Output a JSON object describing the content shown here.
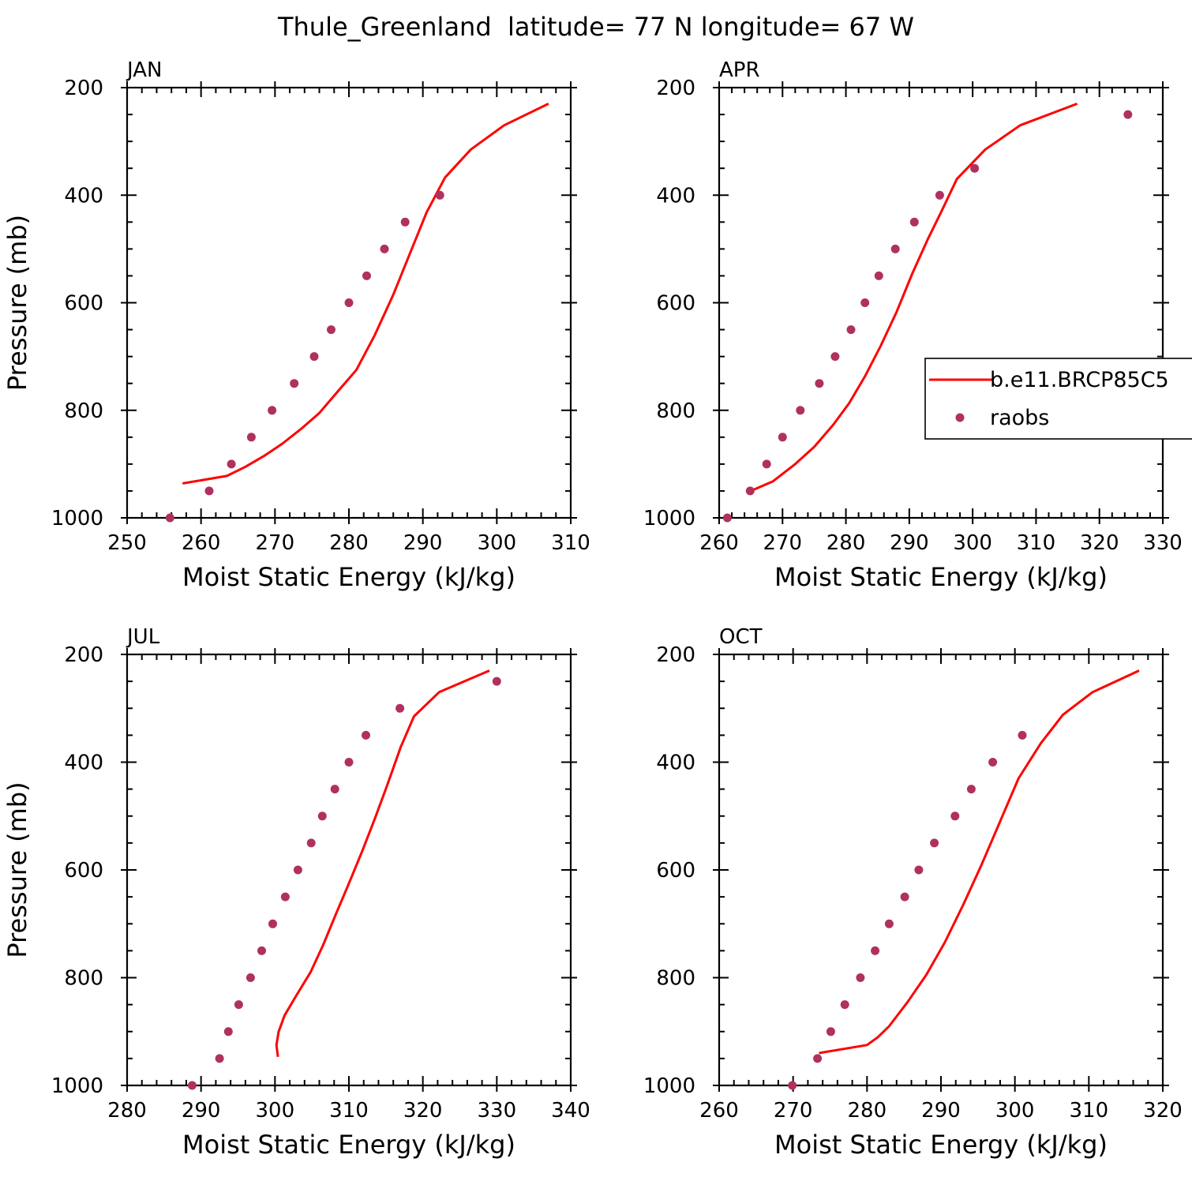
{
  "figure": {
    "title": "Thule_Greenland  latitude= 77 N longitude= 67 W"
  },
  "legend": {
    "model_label": "b.e11.BRCP85C5",
    "obs_label": "raobs"
  },
  "colors": {
    "model": "#ff0000",
    "obs": "#b03060",
    "axes": "#000000"
  },
  "chart_data": [
    {
      "type": "line",
      "title": "JAN",
      "xlabel": "Moist Static Energy (kJ/kg)",
      "ylabel": "Pressure (mb)",
      "xlim": [
        250,
        310
      ],
      "ylim": [
        1000,
        200
      ],
      "xticks": [
        250,
        260,
        270,
        280,
        290,
        300,
        310
      ],
      "yticks": [
        200,
        400,
        600,
        800,
        1000
      ],
      "grid": false,
      "series": [
        {
          "name": "b.e11.BRCP85C5",
          "style": "line",
          "points": [
            [
              257.5,
              936
            ],
            [
              263.5,
              922
            ],
            [
              266,
              905
            ],
            [
              268.5,
              885
            ],
            [
              271,
              862
            ],
            [
              273.5,
              835
            ],
            [
              276,
              805
            ],
            [
              278.5,
              765
            ],
            [
              281,
              725
            ],
            [
              283.5,
              660
            ],
            [
              286,
              585
            ],
            [
              288.5,
              500
            ],
            [
              290.5,
              432
            ],
            [
              293,
              367
            ],
            [
              296.5,
              315
            ],
            [
              301,
              270
            ],
            [
              307,
              230
            ]
          ]
        },
        {
          "name": "raobs",
          "style": "markers",
          "points": [
            [
              255.8,
              1000
            ],
            [
              261.1,
              950
            ],
            [
              264.1,
              900
            ],
            [
              266.8,
              850
            ],
            [
              269.6,
              800
            ],
            [
              272.6,
              750
            ],
            [
              275.3,
              700
            ],
            [
              277.6,
              650
            ],
            [
              280,
              600
            ],
            [
              282.4,
              550
            ],
            [
              284.8,
              500
            ],
            [
              287.6,
              450
            ],
            [
              292.3,
              400
            ]
          ]
        }
      ]
    },
    {
      "type": "line",
      "title": "APR",
      "xlabel": "Moist Static Energy (kJ/kg)",
      "ylabel": "",
      "xlim": [
        260,
        330
      ],
      "ylim": [
        1000,
        200
      ],
      "xticks": [
        260,
        270,
        280,
        290,
        300,
        310,
        320,
        330
      ],
      "yticks": [
        200,
        400,
        600,
        800,
        1000
      ],
      "grid": false,
      "legend_position": "right",
      "series": [
        {
          "name": "b.e11.BRCP85C5",
          "style": "line",
          "points": [
            [
              265,
              950
            ],
            [
              268.5,
              932
            ],
            [
              272,
              900
            ],
            [
              275,
              868
            ],
            [
              278,
              827
            ],
            [
              280.5,
              787
            ],
            [
              283,
              737
            ],
            [
              285.5,
              680
            ],
            [
              288,
              617
            ],
            [
              290.5,
              545
            ],
            [
              293,
              480
            ],
            [
              295,
              432
            ],
            [
              297.5,
              370
            ],
            [
              302,
              315
            ],
            [
              307.5,
              270
            ],
            [
              316.5,
              230
            ]
          ]
        },
        {
          "name": "raobs",
          "style": "markers",
          "points": [
            [
              261.3,
              1000
            ],
            [
              264.9,
              950
            ],
            [
              267.5,
              900
            ],
            [
              270,
              850
            ],
            [
              272.8,
              800
            ],
            [
              275.8,
              750
            ],
            [
              278.3,
              700
            ],
            [
              280.8,
              650
            ],
            [
              283,
              600
            ],
            [
              285.2,
              550
            ],
            [
              287.8,
              500
            ],
            [
              290.8,
              450
            ],
            [
              294.8,
              400
            ],
            [
              300.3,
              350
            ],
            [
              324.5,
              250
            ]
          ]
        }
      ]
    },
    {
      "type": "line",
      "title": "JUL",
      "xlabel": "Moist Static Energy (kJ/kg)",
      "ylabel": "Pressure (mb)",
      "xlim": [
        280,
        340
      ],
      "ylim": [
        1000,
        200
      ],
      "xticks": [
        280,
        290,
        300,
        310,
        320,
        330,
        340
      ],
      "yticks": [
        200,
        400,
        600,
        800,
        1000
      ],
      "grid": false,
      "series": [
        {
          "name": "b.e11.BRCP85C5",
          "style": "line",
          "points": [
            [
              300.4,
              947
            ],
            [
              300.2,
              925
            ],
            [
              300.5,
              900
            ],
            [
              301.3,
              870
            ],
            [
              302.8,
              835
            ],
            [
              304.8,
              790
            ],
            [
              306.5,
              740
            ],
            [
              308.3,
              680
            ],
            [
              310,
              625
            ],
            [
              311.8,
              565
            ],
            [
              313.5,
              505
            ],
            [
              315.2,
              442
            ],
            [
              317,
              372
            ],
            [
              318.8,
              315
            ],
            [
              322.2,
              270
            ],
            [
              329,
              230
            ]
          ]
        },
        {
          "name": "raobs",
          "style": "markers",
          "points": [
            [
              288.8,
              1000
            ],
            [
              292.5,
              950
            ],
            [
              293.7,
              900
            ],
            [
              295.1,
              850
            ],
            [
              296.7,
              800
            ],
            [
              298.2,
              750
            ],
            [
              299.7,
              700
            ],
            [
              301.4,
              650
            ],
            [
              303.1,
              600
            ],
            [
              304.9,
              550
            ],
            [
              306.4,
              500
            ],
            [
              308.1,
              450
            ],
            [
              310,
              400
            ],
            [
              312.3,
              350
            ],
            [
              316.9,
              300
            ],
            [
              330,
              250
            ]
          ]
        }
      ]
    },
    {
      "type": "line",
      "title": "OCT",
      "xlabel": "Moist Static Energy (kJ/kg)",
      "ylabel": "",
      "xlim": [
        260,
        320
      ],
      "ylim": [
        1000,
        200
      ],
      "xticks": [
        260,
        270,
        280,
        290,
        300,
        310,
        320
      ],
      "yticks": [
        200,
        400,
        600,
        800,
        1000
      ],
      "grid": false,
      "series": [
        {
          "name": "b.e11.BRCP85C5",
          "style": "line",
          "points": [
            [
              273.5,
              940
            ],
            [
              280,
              925
            ],
            [
              281.5,
              910
            ],
            [
              283,
              890
            ],
            [
              285.5,
              845
            ],
            [
              288,
              795
            ],
            [
              290.5,
              735
            ],
            [
              293,
              665
            ],
            [
              295.5,
              590
            ],
            [
              298,
              510
            ],
            [
              300.5,
              430
            ],
            [
              303.5,
              365
            ],
            [
              306.5,
              312
            ],
            [
              310.5,
              270
            ],
            [
              316.8,
              230
            ]
          ]
        },
        {
          "name": "raobs",
          "style": "markers",
          "points": [
            [
              269.9,
              1000
            ],
            [
              273.3,
              950
            ],
            [
              275.1,
              900
            ],
            [
              277,
              850
            ],
            [
              279.1,
              800
            ],
            [
              281.1,
              750
            ],
            [
              283,
              700
            ],
            [
              285.1,
              650
            ],
            [
              287,
              600
            ],
            [
              289.1,
              550
            ],
            [
              291.9,
              500
            ],
            [
              294.1,
              450
            ],
            [
              297,
              400
            ],
            [
              301,
              350
            ]
          ]
        }
      ]
    }
  ]
}
